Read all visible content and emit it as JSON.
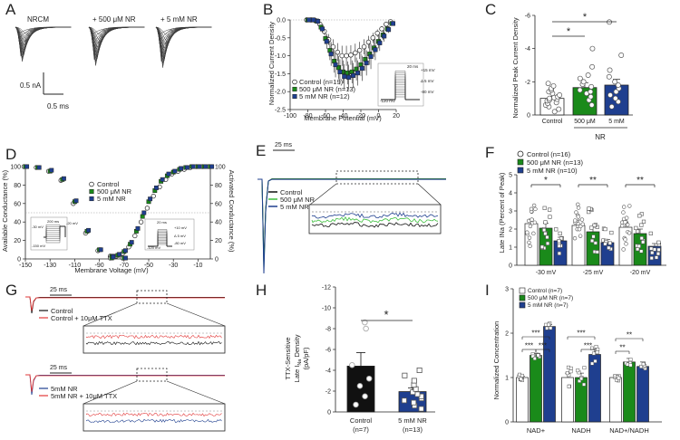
{
  "colors": {
    "control": "#ffffff",
    "nr500": "#1a8a1a",
    "nr5mm": "#1f3f8f",
    "black": "#111111",
    "red": "#e23a3a",
    "tracegray": "#555555"
  },
  "panel_labels": [
    "A",
    "B",
    "C",
    "D",
    "E",
    "F",
    "G",
    "H",
    "I"
  ],
  "panel_a": {
    "labels": [
      "NRCM",
      "+ 500 μM NR",
      "+ 5 mM NR"
    ],
    "scale_current": "0.5 nA",
    "scale_time": "0.5 ms"
  },
  "voltage_protocols": {
    "b": [
      "20 ms",
      "+15 mV",
      "Δ 5 mV",
      "-80 mV",
      "-120 mV"
    ],
    "d_left": [
      "-30 mV",
      "200 ms",
      "-20 mV",
      "-150 mV"
    ],
    "d_right": [
      "20 ms",
      "+10 mV",
      "Δ 5 mV",
      "-80 mV",
      "-120 mV"
    ]
  },
  "panel_e": {
    "scale": "25 ms",
    "legend": [
      "Control",
      "500 μM NR",
      "5 mM NR"
    ]
  },
  "panel_g": {
    "top": {
      "scale": "25 ms",
      "legend": [
        "Control",
        "Control + 10μM TTX"
      ]
    },
    "bottom": {
      "scale": "25 ms",
      "legend": [
        "5mM NR",
        "5mM NR + 10μM TTX"
      ]
    }
  },
  "chart_data": [
    {
      "id": "B",
      "type": "line",
      "title": "",
      "xlabel": "Membrane Potential (mV)",
      "ylabel": "Normalized Current Density",
      "xlim": [
        -100,
        20
      ],
      "ylim": [
        -2.5,
        0
      ],
      "xticks": [
        -100,
        -80,
        -60,
        -40,
        -20,
        0,
        20
      ],
      "yticks": [
        -2.5,
        -2.0,
        -1.5,
        -1.0,
        -0.5,
        0.0
      ],
      "xticklabels": [
        "-100",
        "-80",
        "-60",
        "-40",
        "-20",
        "0",
        "20"
      ],
      "yticklabels": [
        "-2.5",
        "-2.0",
        "-1.5",
        "-1.0",
        "-0.5",
        "0.0"
      ],
      "x": [
        -80,
        -75,
        -70,
        -65,
        -60,
        -55,
        -50,
        -45,
        -40,
        -35,
        -30,
        -25,
        -20,
        -15,
        -10,
        -5,
        0,
        5,
        10,
        15
      ],
      "series": [
        {
          "name": "Control (n=19)",
          "marker": "open-circle",
          "values": [
            0.0,
            0.0,
            -0.02,
            -0.12,
            -0.32,
            -0.55,
            -0.75,
            -0.9,
            -1.0,
            -1.0,
            -0.98,
            -0.92,
            -0.85,
            -0.75,
            -0.62,
            -0.5,
            -0.37,
            -0.25,
            -0.12,
            -0.05
          ]
        },
        {
          "name": "500 μM NR (n=13)",
          "marker": "green-square",
          "values": [
            0.0,
            0.0,
            -0.03,
            -0.2,
            -0.52,
            -0.85,
            -1.15,
            -1.33,
            -1.45,
            -1.48,
            -1.45,
            -1.37,
            -1.25,
            -1.1,
            -0.95,
            -0.78,
            -0.6,
            -0.42,
            -0.25,
            -0.1
          ]
        },
        {
          "name": "5 mM NR (n=12)",
          "marker": "blue-square",
          "values": [
            0.0,
            0.0,
            -0.04,
            -0.25,
            -0.6,
            -0.95,
            -1.25,
            -1.45,
            -1.58,
            -1.6,
            -1.55,
            -1.48,
            -1.35,
            -1.2,
            -1.02,
            -0.83,
            -0.64,
            -0.45,
            -0.27,
            -0.1
          ]
        }
      ]
    },
    {
      "id": "C",
      "type": "bar",
      "ylabel": "Normalized Peak Current Density",
      "ylim": [
        0,
        -6
      ],
      "yticks": [
        0,
        -2,
        -4,
        -6
      ],
      "yticklabels": [
        "0",
        "-2",
        "-4",
        "-6"
      ],
      "categories": [
        "Control",
        "500 μM",
        "5 mM"
      ],
      "group_label": "NR",
      "means": [
        -1.0,
        -1.65,
        -1.8
      ],
      "sems": [
        0.12,
        0.3,
        0.35
      ],
      "points": [
        [
          -0.2,
          -0.35,
          -0.5,
          -0.6,
          -0.7,
          -0.75,
          -0.85,
          -0.9,
          -0.95,
          -1.0,
          -1.05,
          -1.1,
          -1.2,
          -1.3,
          -1.4,
          -1.5,
          -1.6,
          -1.75,
          -1.9
        ],
        [
          -0.6,
          -0.9,
          -1.1,
          -1.3,
          -1.4,
          -1.5,
          -1.7,
          -1.85,
          -2.0,
          -2.2,
          -2.4,
          -2.9,
          -4.0
        ],
        [
          -0.5,
          -0.8,
          -1.0,
          -1.2,
          -1.4,
          -1.6,
          -1.8,
          -2.0,
          -2.3,
          -2.7,
          -3.6,
          -5.6
        ]
      ],
      "significance": [
        "*",
        "*"
      ]
    },
    {
      "id": "D",
      "type": "scatter",
      "xlabel": "Membrane Voltage (mV)",
      "ylabel": "Available Conductance (%)",
      "ylabel_right": "Activated Conductance (%)",
      "xlim": [
        -150,
        0
      ],
      "ylim": [
        0,
        100
      ],
      "xticks": [
        -150,
        -130,
        -110,
        -90,
        -70,
        -50,
        -30,
        -10
      ],
      "xticklabels": [
        "-150",
        "-130",
        "-110",
        "-90",
        "-70",
        "-50",
        "-30",
        "-10"
      ],
      "yticks": [
        0,
        20,
        40,
        60,
        80,
        100
      ],
      "yticklabels": [
        "0",
        "20",
        "40",
        "60",
        "80",
        "100"
      ],
      "legend": [
        "Control",
        "500 μM NR",
        "5 mM NR"
      ],
      "x_inact": [
        -150,
        -140,
        -130,
        -120,
        -110,
        -100,
        -90,
        -80,
        -70
      ],
      "x_act": [
        -80,
        -75,
        -70,
        -65,
        -60,
        -55,
        -50,
        -45,
        -40,
        -35,
        -30,
        -25,
        -20,
        -15,
        -10,
        -5,
        0
      ],
      "series": [
        {
          "name": "Control",
          "inact": [
            100,
            99,
            95,
            85,
            60,
            28,
            9,
            3,
            1
          ],
          "act": [
            1,
            3,
            6,
            13,
            25,
            40,
            55,
            68,
            78,
            86,
            92,
            95,
            97,
            99,
            100,
            100,
            100
          ]
        },
        {
          "name": "500 μM NR",
          "inact": [
            100,
            99,
            95,
            86,
            62,
            30,
            10,
            3,
            1
          ],
          "act": [
            1,
            4,
            8,
            16,
            30,
            46,
            62,
            74,
            84,
            90,
            94,
            97,
            99,
            100,
            100,
            100,
            100
          ]
        },
        {
          "name": "5 mM NR",
          "inact": [
            100,
            99,
            96,
            87,
            63,
            31,
            10,
            3,
            1
          ],
          "act": [
            2,
            5,
            9,
            18,
            33,
            50,
            65,
            77,
            86,
            92,
            95,
            98,
            99,
            100,
            100,
            100,
            100
          ]
        }
      ]
    },
    {
      "id": "F",
      "type": "bar",
      "ylabel": "Late INa (Percent of Peak)",
      "ylim": [
        0,
        5
      ],
      "yticks": [
        0,
        1,
        2,
        3,
        4,
        5
      ],
      "yticklabels": [
        "0",
        "1",
        "2",
        "3",
        "4",
        "5"
      ],
      "categories": [
        "-30 mV",
        "-25 mV",
        "-20 mV"
      ],
      "legend": [
        "Control (n=16)",
        "500 μM NR (n=13)",
        "5 mM NR (n=10)"
      ],
      "series": [
        {
          "name": "Control (n=16)",
          "values": [
            2.3,
            2.2,
            2.1
          ],
          "sems": [
            0.25,
            0.3,
            0.28
          ]
        },
        {
          "name": "500 μM NR (n=13)",
          "values": [
            2.05,
            1.85,
            1.75
          ],
          "sems": [
            0.28,
            0.25,
            0.25
          ]
        },
        {
          "name": "5 mM NR (n=10)",
          "values": [
            1.35,
            1.25,
            1.05
          ],
          "sems": [
            0.2,
            0.18,
            0.15
          ]
        }
      ],
      "significance": [
        "*",
        "**",
        "**"
      ]
    },
    {
      "id": "H",
      "type": "bar",
      "ylabel": "TTX-Sensitive Late INa Density (pA/pF)",
      "ylim": [
        0,
        -12
      ],
      "yticks": [
        0,
        -2,
        -4,
        -6,
        -8,
        -10,
        -12
      ],
      "yticklabels": [
        "0",
        "-2",
        "-4",
        "-6",
        "-8",
        "-10",
        "-12"
      ],
      "categories": [
        "Control",
        "5 mM NR"
      ],
      "ns": [
        "(n=7)",
        "(n=13)"
      ],
      "means": [
        -4.4,
        -1.95
      ],
      "sems": [
        1.3,
        0.35
      ],
      "points": [
        [
          -0.7,
          -1.5,
          -2.5,
          -3.2,
          -4.5,
          -8.0,
          -8.6
        ],
        [
          -0.3,
          -0.6,
          -0.9,
          -1.1,
          -1.3,
          -1.5,
          -1.7,
          -1.9,
          -2.2,
          -2.6,
          -3.0,
          -3.5,
          -4.0
        ]
      ],
      "significance": "*"
    },
    {
      "id": "I",
      "type": "bar",
      "ylabel": "Normalized Concentration",
      "ylim": [
        0,
        3
      ],
      "yticks": [
        0,
        1,
        2,
        3
      ],
      "yticklabels": [
        "0",
        "1",
        "2",
        "3"
      ],
      "categories": [
        "NAD+",
        "NADH",
        "NAD+/NADH"
      ],
      "legend": [
        "Control (n=7)",
        "500 μM NR (n=7)",
        "5 mM NR (n=7)"
      ],
      "series": [
        {
          "name": "Control (n=7)",
          "values": [
            1.0,
            1.0,
            1.0
          ],
          "sems": [
            0.03,
            0.1,
            0.06
          ]
        },
        {
          "name": "500 μM NR (n=7)",
          "values": [
            1.5,
            1.0,
            1.35
          ],
          "sems": [
            0.05,
            0.1,
            0.08
          ]
        },
        {
          "name": "5 mM NR (n=7)",
          "values": [
            2.15,
            1.52,
            1.25
          ],
          "sems": [
            0.04,
            0.12,
            0.1
          ]
        }
      ],
      "significance": [
        "***",
        "***",
        "***",
        "***",
        "***",
        "**",
        "**"
      ]
    }
  ]
}
